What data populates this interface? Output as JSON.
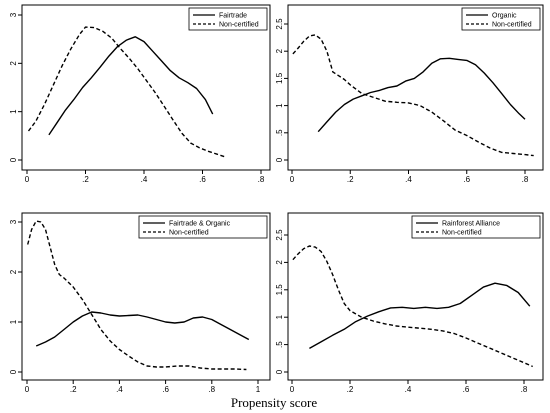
{
  "figure": {
    "xlabel": "Propensity score"
  },
  "chart_data": [
    {
      "type": "line",
      "xlim": [
        0,
        0.8
      ],
      "ylim": [
        0,
        3
      ],
      "xticks": [
        0,
        0.2,
        0.4,
        0.6,
        0.8
      ],
      "xtick_labels": [
        "0",
        ".2",
        ".4",
        ".6",
        ".8"
      ],
      "yticks": [
        0,
        1,
        2,
        3
      ],
      "ytick_labels": [
        "0",
        "1",
        "2",
        "3"
      ],
      "legend": "top-right",
      "series": [
        {
          "name": "Fairtrade",
          "style": "solid",
          "x": [
            0.075,
            0.1,
            0.13,
            0.16,
            0.19,
            0.22,
            0.25,
            0.28,
            0.31,
            0.34,
            0.37,
            0.4,
            0.43,
            0.46,
            0.49,
            0.52,
            0.55,
            0.58,
            0.61,
            0.635
          ],
          "y": [
            0.52,
            0.75,
            1.02,
            1.25,
            1.5,
            1.7,
            1.92,
            2.15,
            2.35,
            2.48,
            2.55,
            2.45,
            2.25,
            2.05,
            1.85,
            1.7,
            1.6,
            1.48,
            1.25,
            0.95
          ]
        },
        {
          "name": "Non-certified",
          "style": "dashed",
          "x": [
            0.005,
            0.03,
            0.06,
            0.09,
            0.12,
            0.15,
            0.18,
            0.2,
            0.23,
            0.26,
            0.29,
            0.32,
            0.35,
            0.38,
            0.41,
            0.44,
            0.47,
            0.5,
            0.53,
            0.56,
            0.59,
            0.62,
            0.65,
            0.68
          ],
          "y": [
            0.6,
            0.8,
            1.15,
            1.55,
            1.95,
            2.3,
            2.6,
            2.75,
            2.74,
            2.66,
            2.52,
            2.3,
            2.1,
            1.88,
            1.63,
            1.38,
            1.1,
            0.82,
            0.55,
            0.35,
            0.25,
            0.18,
            0.12,
            0.06
          ]
        }
      ]
    },
    {
      "type": "line",
      "xlim": [
        0,
        0.8
      ],
      "ylim": [
        0,
        2.5
      ],
      "xticks": [
        0,
        0.2,
        0.4,
        0.6,
        0.8
      ],
      "xtick_labels": [
        "0",
        ".2",
        ".4",
        ".6",
        ".8"
      ],
      "yticks": [
        0,
        0.5,
        1,
        1.5,
        2,
        2.5
      ],
      "ytick_labels": [
        "0",
        ".5",
        "1",
        "1.5",
        "2",
        "2.5"
      ],
      "legend": "top-right",
      "series": [
        {
          "name": "Organic",
          "style": "solid",
          "x": [
            0.09,
            0.12,
            0.15,
            0.18,
            0.21,
            0.24,
            0.27,
            0.3,
            0.33,
            0.36,
            0.39,
            0.42,
            0.45,
            0.48,
            0.51,
            0.54,
            0.57,
            0.6,
            0.63,
            0.66,
            0.69,
            0.72,
            0.75,
            0.78,
            0.8
          ],
          "y": [
            0.52,
            0.7,
            0.88,
            1.02,
            1.12,
            1.18,
            1.24,
            1.28,
            1.33,
            1.36,
            1.45,
            1.5,
            1.62,
            1.78,
            1.86,
            1.87,
            1.85,
            1.83,
            1.75,
            1.6,
            1.42,
            1.22,
            1.02,
            0.85,
            0.75
          ]
        },
        {
          "name": "Non-certified",
          "style": "dashed",
          "x": [
            0.003,
            0.02,
            0.04,
            0.06,
            0.08,
            0.1,
            0.12,
            0.14,
            0.16,
            0.18,
            0.2,
            0.24,
            0.28,
            0.32,
            0.36,
            0.4,
            0.44,
            0.48,
            0.52,
            0.56,
            0.6,
            0.64,
            0.68,
            0.72,
            0.76,
            0.8,
            0.83
          ],
          "y": [
            1.95,
            2.05,
            2.18,
            2.28,
            2.3,
            2.22,
            2.0,
            1.62,
            1.55,
            1.48,
            1.38,
            1.22,
            1.15,
            1.08,
            1.06,
            1.05,
            1.0,
            0.88,
            0.72,
            0.55,
            0.45,
            0.33,
            0.22,
            0.14,
            0.12,
            0.1,
            0.08
          ]
        }
      ]
    },
    {
      "type": "line",
      "xlim": [
        0,
        1
      ],
      "ylim": [
        0,
        3
      ],
      "xticks": [
        0,
        0.2,
        0.4,
        0.6,
        0.8,
        1
      ],
      "xtick_labels": [
        "0",
        ".2",
        ".4",
        ".6",
        ".8",
        "1"
      ],
      "yticks": [
        0,
        1,
        2,
        3
      ],
      "ytick_labels": [
        "0",
        "1",
        "2",
        "3"
      ],
      "legend": "top-right",
      "series": [
        {
          "name": "Fairtrade & Organic",
          "style": "solid",
          "x": [
            0.04,
            0.08,
            0.12,
            0.16,
            0.2,
            0.24,
            0.28,
            0.32,
            0.36,
            0.4,
            0.44,
            0.48,
            0.52,
            0.56,
            0.6,
            0.64,
            0.68,
            0.72,
            0.76,
            0.8,
            0.84,
            0.88,
            0.92,
            0.96
          ],
          "y": [
            0.52,
            0.6,
            0.7,
            0.85,
            1.0,
            1.12,
            1.2,
            1.18,
            1.14,
            1.12,
            1.13,
            1.14,
            1.1,
            1.05,
            1.0,
            0.98,
            1.0,
            1.08,
            1.1,
            1.05,
            0.95,
            0.85,
            0.75,
            0.65
          ]
        },
        {
          "name": "Non-certified",
          "style": "dashed",
          "x": [
            0.003,
            0.02,
            0.04,
            0.06,
            0.08,
            0.1,
            0.12,
            0.14,
            0.16,
            0.2,
            0.24,
            0.28,
            0.32,
            0.36,
            0.4,
            0.44,
            0.48,
            0.52,
            0.56,
            0.6,
            0.65,
            0.7,
            0.75,
            0.8,
            0.85,
            0.9,
            0.95
          ],
          "y": [
            2.55,
            2.85,
            3.02,
            3.0,
            2.85,
            2.5,
            2.15,
            1.95,
            1.88,
            1.7,
            1.45,
            1.15,
            0.85,
            0.62,
            0.45,
            0.32,
            0.2,
            0.12,
            0.1,
            0.1,
            0.12,
            0.12,
            0.08,
            0.06,
            0.06,
            0.06,
            0.05
          ]
        }
      ]
    },
    {
      "type": "line",
      "xlim": [
        0,
        0.8
      ],
      "ylim": [
        0,
        2.5
      ],
      "xticks": [
        0,
        0.2,
        0.4,
        0.6,
        0.8
      ],
      "xtick_labels": [
        "0",
        ".2",
        ".4",
        ".6",
        ".8"
      ],
      "yticks": [
        0,
        0.5,
        1,
        1.5,
        2,
        2.5
      ],
      "ytick_labels": [
        "0",
        ".5",
        "1",
        "1.5",
        "2",
        "2.5"
      ],
      "legend": "top-right",
      "series": [
        {
          "name": "Rainforest Alliance",
          "style": "solid",
          "x": [
            0.06,
            0.1,
            0.14,
            0.18,
            0.22,
            0.26,
            0.3,
            0.34,
            0.38,
            0.42,
            0.46,
            0.5,
            0.54,
            0.58,
            0.62,
            0.66,
            0.7,
            0.74,
            0.78,
            0.82
          ],
          "y": [
            0.43,
            0.55,
            0.67,
            0.78,
            0.92,
            1.02,
            1.1,
            1.17,
            1.18,
            1.16,
            1.18,
            1.16,
            1.18,
            1.25,
            1.4,
            1.55,
            1.62,
            1.58,
            1.45,
            1.2
          ]
        },
        {
          "name": "Non-certified",
          "style": "dashed",
          "x": [
            0.003,
            0.02,
            0.04,
            0.06,
            0.08,
            0.1,
            0.12,
            0.14,
            0.16,
            0.18,
            0.2,
            0.24,
            0.28,
            0.32,
            0.36,
            0.4,
            0.44,
            0.48,
            0.52,
            0.56,
            0.6,
            0.64,
            0.68,
            0.72,
            0.76,
            0.8,
            0.83
          ],
          "y": [
            2.05,
            2.15,
            2.25,
            2.3,
            2.28,
            2.2,
            2.02,
            1.78,
            1.5,
            1.25,
            1.12,
            1.0,
            0.93,
            0.88,
            0.84,
            0.82,
            0.8,
            0.78,
            0.75,
            0.7,
            0.62,
            0.53,
            0.44,
            0.35,
            0.26,
            0.17,
            0.1
          ]
        }
      ]
    }
  ]
}
